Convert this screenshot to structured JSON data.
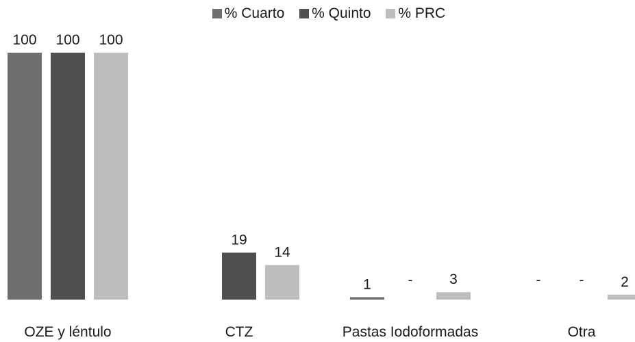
{
  "chart_data": {
    "type": "bar",
    "categories": [
      "OZE y léntulo",
      "CTZ",
      "Pastas Iodoformadas",
      "Otra"
    ],
    "series": [
      {
        "name": "% Cuarto",
        "color": "#6f6f6f",
        "values": [
          100,
          null,
          1,
          null
        ],
        "labels": [
          "100",
          "",
          "1",
          "-"
        ]
      },
      {
        "name": "% Quinto",
        "color": "#4f4f4f",
        "values": [
          100,
          19,
          null,
          null
        ],
        "labels": [
          "100",
          "19",
          "-",
          "-"
        ]
      },
      {
        "name": "% PRC",
        "color": "#bdbdbd",
        "values": [
          100,
          14,
          3,
          2
        ],
        "labels": [
          "100",
          "14",
          "3",
          "2"
        ]
      }
    ],
    "ylim": [
      0,
      100
    ],
    "legend": "top-center",
    "grid": false
  }
}
